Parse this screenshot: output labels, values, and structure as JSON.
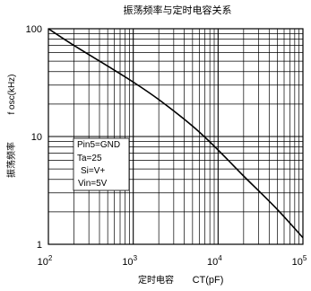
{
  "chart_data": {
    "type": "line",
    "title": "振荡频率与定时电容关系",
    "xlabel_cn": "定时电容",
    "xlabel_en": "CT(pF)",
    "ylabel_cn": "振荡频率",
    "ylabel_en": "f  osc(kHz)",
    "x_scale": "log",
    "y_scale": "log",
    "xlim": [
      100,
      100000
    ],
    "ylim": [
      1,
      100
    ],
    "x_ticks": [
      {
        "value": 100,
        "base": "10",
        "exp": "2"
      },
      {
        "value": 1000,
        "base": "10",
        "exp": "3"
      },
      {
        "value": 10000,
        "base": "10",
        "exp": "4"
      },
      {
        "value": 100000,
        "base": "10",
        "exp": "5"
      }
    ],
    "y_ticks": [
      {
        "value": 1,
        "label": "1"
      },
      {
        "value": 10,
        "label": "10"
      },
      {
        "value": 100,
        "label": "100"
      }
    ],
    "grid": true,
    "conditions": [
      "Pin5=GND",
      "Ta=25",
      "Si=V+",
      "Vin=5V"
    ],
    "series": [
      {
        "x": [
          100,
          200,
          500,
          1000,
          2000,
          5000,
          10000,
          20000,
          50000,
          100000
        ],
        "y": [
          100,
          70,
          45,
          32,
          22,
          12.5,
          7.5,
          4.3,
          2.1,
          1.15
        ]
      }
    ]
  }
}
